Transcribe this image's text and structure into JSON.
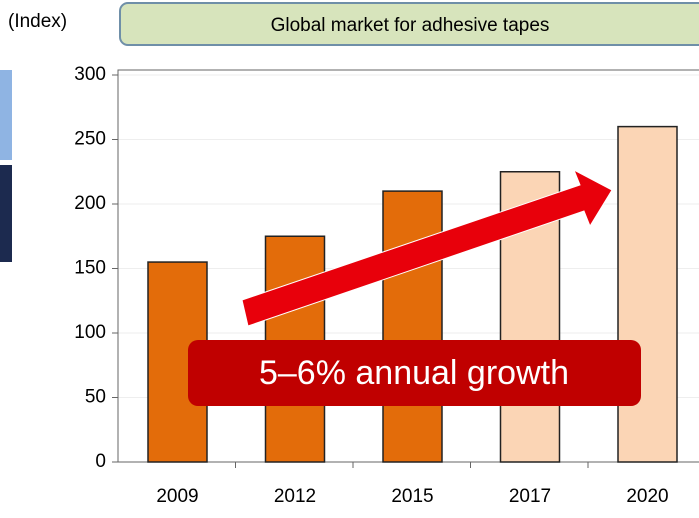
{
  "chart_data": {
    "type": "bar",
    "title": "Global market for adhesive tapes",
    "y_label": "(Index)",
    "categories": [
      "2009",
      "2012",
      "2015",
      "2017",
      "2020"
    ],
    "values": [
      155,
      175,
      210,
      225,
      260
    ],
    "colors": [
      "#e36c0a",
      "#e36c0a",
      "#e36c0a",
      "#fbd5b5",
      "#fbd5b5"
    ],
    "ylim": [
      0,
      300
    ],
    "yticks": [
      0,
      50,
      100,
      150,
      200,
      250,
      300
    ],
    "grid": true,
    "annotation": "5–6% annual growth"
  }
}
